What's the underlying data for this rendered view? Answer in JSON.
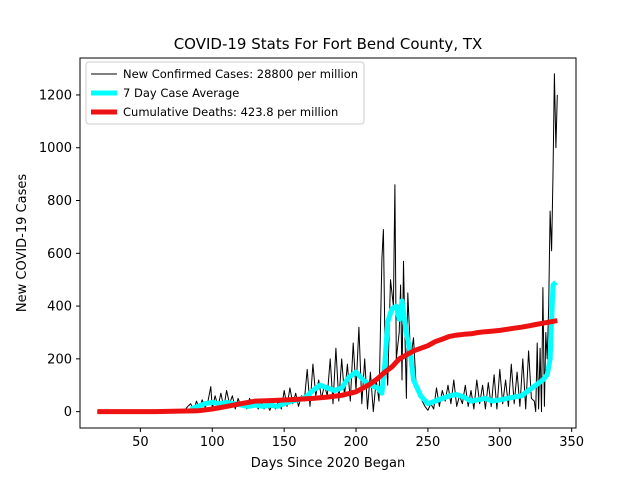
{
  "chart_data": {
    "type": "line",
    "title": "COVID-19 Stats For Fort Bend County, TX",
    "xlabel": "Days Since 2020 Began",
    "ylabel": "New COVID-19 Cases",
    "xlim": [
      8,
      353
    ],
    "ylim": [
      -62,
      1340
    ],
    "xticks": [
      50,
      100,
      150,
      200,
      250,
      300,
      350
    ],
    "yticks": [
      0,
      200,
      400,
      600,
      800,
      1000,
      1200
    ],
    "legend_position": "top-left",
    "series": [
      {
        "name": "New Confirmed Cases: 28800 per million",
        "color": "#000000",
        "style": "thin-line",
        "x": [
          20,
          60,
          80,
          83,
          85,
          87,
          89,
          91,
          93,
          95,
          97,
          99,
          100,
          102,
          104,
          106,
          108,
          110,
          112,
          114,
          116,
          118,
          120,
          122,
          124,
          126,
          128,
          130,
          132,
          134,
          136,
          138,
          140,
          142,
          144,
          146,
          148,
          150,
          152,
          154,
          156,
          158,
          160,
          162,
          164,
          166,
          168,
          170,
          172,
          174,
          176,
          178,
          180,
          182,
          184,
          186,
          188,
          190,
          192,
          194,
          196,
          198,
          200,
          202,
          204,
          206,
          208,
          210,
          212,
          214,
          216,
          218,
          219,
          220,
          222,
          224,
          226,
          227,
          228,
          230,
          231,
          232,
          233,
          234,
          235,
          236,
          238,
          240,
          242,
          244,
          246,
          248,
          250,
          252,
          254,
          256,
          258,
          260,
          262,
          264,
          266,
          268,
          270,
          272,
          274,
          276,
          278,
          280,
          282,
          284,
          286,
          288,
          290,
          292,
          294,
          296,
          298,
          300,
          302,
          304,
          306,
          308,
          310,
          312,
          314,
          316,
          318,
          320,
          322,
          324,
          325,
          326,
          327,
          328,
          329,
          330,
          331,
          332,
          333,
          334,
          335,
          336,
          337,
          338,
          339,
          340
        ],
        "values": [
          0,
          0,
          0,
          20,
          30,
          5,
          40,
          10,
          45,
          15,
          40,
          95,
          10,
          60,
          20,
          70,
          15,
          80,
          30,
          60,
          10,
          50,
          20,
          40,
          10,
          50,
          20,
          30,
          10,
          40,
          10,
          30,
          5,
          30,
          10,
          40,
          10,
          80,
          20,
          90,
          30,
          70,
          20,
          60,
          40,
          160,
          20,
          180,
          60,
          120,
          50,
          100,
          60,
          200,
          30,
          240,
          40,
          200,
          60,
          180,
          40,
          260,
          80,
          320,
          30,
          200,
          10,
          150,
          0,
          120,
          40,
          580,
          690,
          300,
          100,
          500,
          400,
          860,
          200,
          300,
          480,
          120,
          570,
          300,
          50,
          450,
          200,
          280,
          80,
          90,
          40,
          20,
          5,
          30,
          10,
          90,
          20,
          80,
          40,
          100,
          30,
          120,
          20,
          60,
          30,
          100,
          20,
          80,
          10,
          120,
          30,
          100,
          10,
          110,
          20,
          140,
          10,
          160,
          30,
          120,
          20,
          180,
          30,
          150,
          20,
          200,
          10,
          230,
          50,
          40,
          0,
          260,
          10,
          240,
          0,
          470,
          20,
          300,
          200,
          400,
          760,
          610,
          900,
          1280,
          1000,
          1200
        ]
      },
      {
        "name": "7 Day Case Average",
        "color": "#00ffff",
        "style": "thick-line",
        "x": [
          85,
          90,
          95,
          100,
          105,
          110,
          115,
          120,
          125,
          130,
          135,
          140,
          145,
          150,
          155,
          160,
          165,
          170,
          175,
          180,
          185,
          190,
          195,
          200,
          205,
          210,
          215,
          218,
          220,
          222,
          225,
          228,
          230,
          232,
          235,
          238,
          240,
          245,
          250,
          255,
          260,
          265,
          270,
          275,
          280,
          285,
          290,
          295,
          300,
          305,
          310,
          315,
          320,
          325,
          330,
          333,
          335,
          337,
          339
        ],
        "values": [
          10,
          20,
          30,
          35,
          30,
          35,
          30,
          25,
          20,
          25,
          20,
          25,
          20,
          30,
          40,
          45,
          55,
          80,
          100,
          90,
          80,
          90,
          130,
          150,
          120,
          100,
          90,
          70,
          180,
          340,
          390,
          400,
          350,
          420,
          300,
          210,
          120,
          60,
          30,
          40,
          50,
          60,
          65,
          55,
          40,
          45,
          50,
          40,
          45,
          50,
          55,
          60,
          80,
          100,
          120,
          140,
          200,
          480,
          490
        ]
      },
      {
        "name": "Cumulative Deaths: 423.8 per million",
        "color": "#ee1111",
        "style": "thick-line",
        "x": [
          20,
          60,
          90,
          100,
          110,
          120,
          130,
          140,
          150,
          160,
          170,
          180,
          190,
          200,
          205,
          210,
          215,
          220,
          225,
          230,
          235,
          240,
          245,
          250,
          255,
          260,
          265,
          270,
          275,
          280,
          285,
          290,
          295,
          300,
          305,
          310,
          315,
          320,
          325,
          330,
          335,
          340
        ],
        "values": [
          0,
          0,
          3,
          10,
          20,
          30,
          40,
          42,
          44,
          47,
          50,
          55,
          62,
          75,
          90,
          105,
          125,
          150,
          170,
          200,
          215,
          230,
          240,
          250,
          265,
          275,
          285,
          290,
          293,
          295,
          300,
          303,
          305,
          308,
          312,
          316,
          320,
          325,
          330,
          335,
          340,
          345
        ]
      }
    ]
  }
}
